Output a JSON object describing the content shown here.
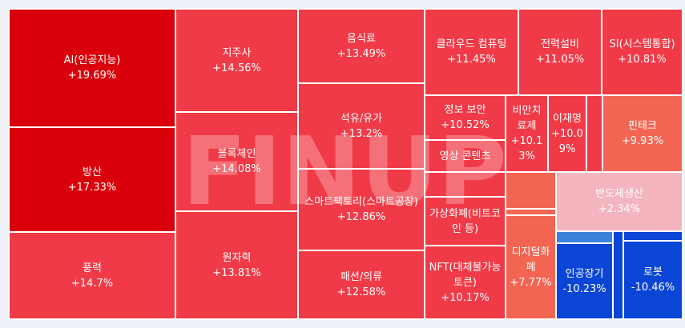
{
  "watermark": "FINUP",
  "chart_data": {
    "type": "treemap",
    "tiles": [
      {
        "name": "AI(인공지능)",
        "change": "+19.69%",
        "value": 19.69,
        "color": "#d9000b"
      },
      {
        "name": "방산",
        "change": "+17.33%",
        "value": 17.33,
        "color": "#d9000b"
      },
      {
        "name": "풍력",
        "change": "+14.7%",
        "value": 14.7,
        "color": "#f13a47"
      },
      {
        "name": "지주사",
        "change": "+14.56%",
        "value": 14.56,
        "color": "#f13a47"
      },
      {
        "name": "블록체인",
        "change": "+14.08%",
        "value": 14.08,
        "color": "#f13a47"
      },
      {
        "name": "원자력",
        "change": "+13.81%",
        "value": 13.81,
        "color": "#f13a47"
      },
      {
        "name": "음식료",
        "change": "+13.49%",
        "value": 13.49,
        "color": "#f13a47"
      },
      {
        "name": "석유/유가",
        "change": "+13.2%",
        "value": 13.2,
        "color": "#f13a47"
      },
      {
        "name": "스마트팩토리(스마트공장)",
        "change": "+12.86%",
        "value": 12.86,
        "color": "#f13a47"
      },
      {
        "name": "패션/의류",
        "change": "+12.58%",
        "value": 12.58,
        "color": "#f13a47"
      },
      {
        "name": "클라우드 컴퓨팅",
        "change": "+11.45%",
        "value": 11.45,
        "color": "#f13a47"
      },
      {
        "name": "전력설비",
        "change": "+11.05%",
        "value": 11.05,
        "color": "#f13a47"
      },
      {
        "name": "SI(시스템통합)",
        "change": "+10.81%",
        "value": 10.81,
        "color": "#f13a47"
      },
      {
        "name": "정보 보안",
        "change": "+10.52%",
        "value": 10.52,
        "color": "#f13a47"
      },
      {
        "name": "비만치료제",
        "change": "+10.13%",
        "value": 10.13,
        "color": "#f13a47"
      },
      {
        "name": "이재명",
        "change": "+10.09%",
        "value": 10.09,
        "color": "#f13a47"
      },
      {
        "name": "",
        "change": "",
        "value": null,
        "color": "#f13a47"
      },
      {
        "name": "핀테크",
        "change": "+9.93%",
        "value": 9.93,
        "color": "#f26552"
      },
      {
        "name": "영상 콘텐츠",
        "change": "",
        "value": null,
        "color": "#f13a47"
      },
      {
        "name": "",
        "change": "",
        "value": null,
        "color": "#f13a47"
      },
      {
        "name": "가상화폐(비트코인 등)",
        "change": "",
        "value": null,
        "color": "#f13a47"
      },
      {
        "name": "NFT(대체불가능토큰)",
        "change": "+10.17%",
        "value": 10.17,
        "color": "#f13a47"
      },
      {
        "name": "",
        "change": "",
        "value": null,
        "color": "#f26552"
      },
      {
        "name": "",
        "change": "",
        "value": null,
        "color": "#f26552"
      },
      {
        "name": "디지털화폐",
        "change": "+7.77%",
        "value": 7.77,
        "color": "#f26552"
      },
      {
        "name": "반도체생산",
        "change": "+2.34%",
        "value": 2.34,
        "color": "#f4b5be"
      },
      {
        "name": "",
        "change": "",
        "value": null,
        "color": "#3c82da"
      },
      {
        "name": "인공장기",
        "change": "-10.23%",
        "value": -10.23,
        "color": "#0b45d6"
      },
      {
        "name": "",
        "change": "",
        "value": null,
        "color": "#0b45d6"
      },
      {
        "name": "",
        "change": "",
        "value": null,
        "color": "#0b45d6"
      },
      {
        "name": "로봇",
        "change": "-10.46%",
        "value": -10.46,
        "color": "#0b45d6"
      }
    ]
  }
}
